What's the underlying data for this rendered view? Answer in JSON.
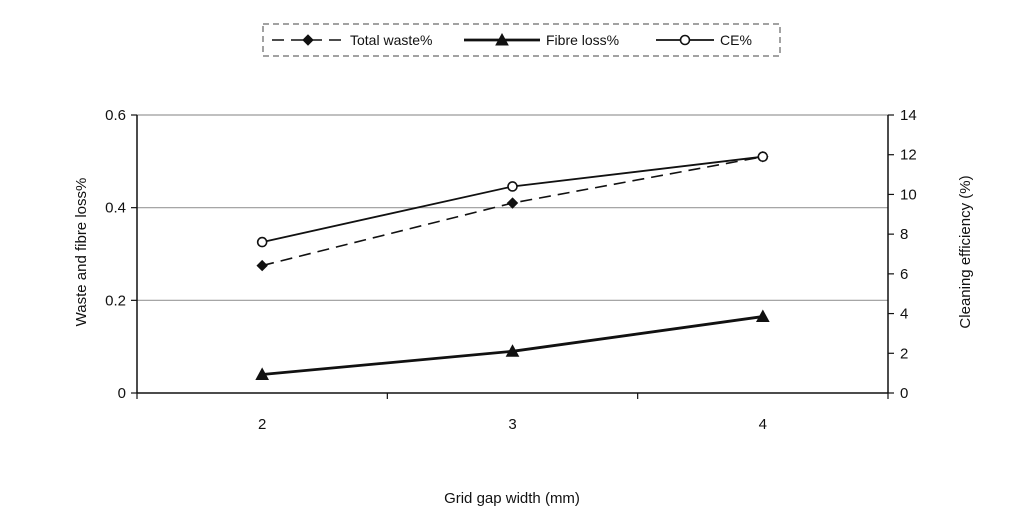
{
  "chart_data": {
    "type": "line",
    "categories": [
      "2",
      "3",
      "4"
    ],
    "xlabel": "Grid gap width (mm)",
    "ylabel": "Waste and fibre loss%",
    "y2label": "Cleaning efficiency (%)",
    "ylim": [
      0,
      0.6
    ],
    "y2lim": [
      0,
      14
    ],
    "yticks": [
      "0",
      "0.2",
      "0.4",
      "0.6"
    ],
    "y2ticks": [
      "0",
      "2",
      "4",
      "6",
      "8",
      "10",
      "12",
      "14"
    ],
    "grid": "horizontal",
    "legend_position": "top",
    "series": [
      {
        "name": "Total waste%",
        "axis": "left",
        "values": [
          0.275,
          0.41,
          0.51
        ],
        "style": "dashed",
        "marker": "diamond",
        "color": "#111111"
      },
      {
        "name": "Fibre loss%",
        "axis": "left",
        "values": [
          0.04,
          0.09,
          0.165
        ],
        "style": "solid-thick",
        "marker": "triangle",
        "color": "#111111"
      },
      {
        "name": "CE%",
        "axis": "right",
        "values": [
          7.6,
          10.4,
          11.9
        ],
        "style": "solid",
        "marker": "circle",
        "color": "#111111"
      }
    ]
  }
}
